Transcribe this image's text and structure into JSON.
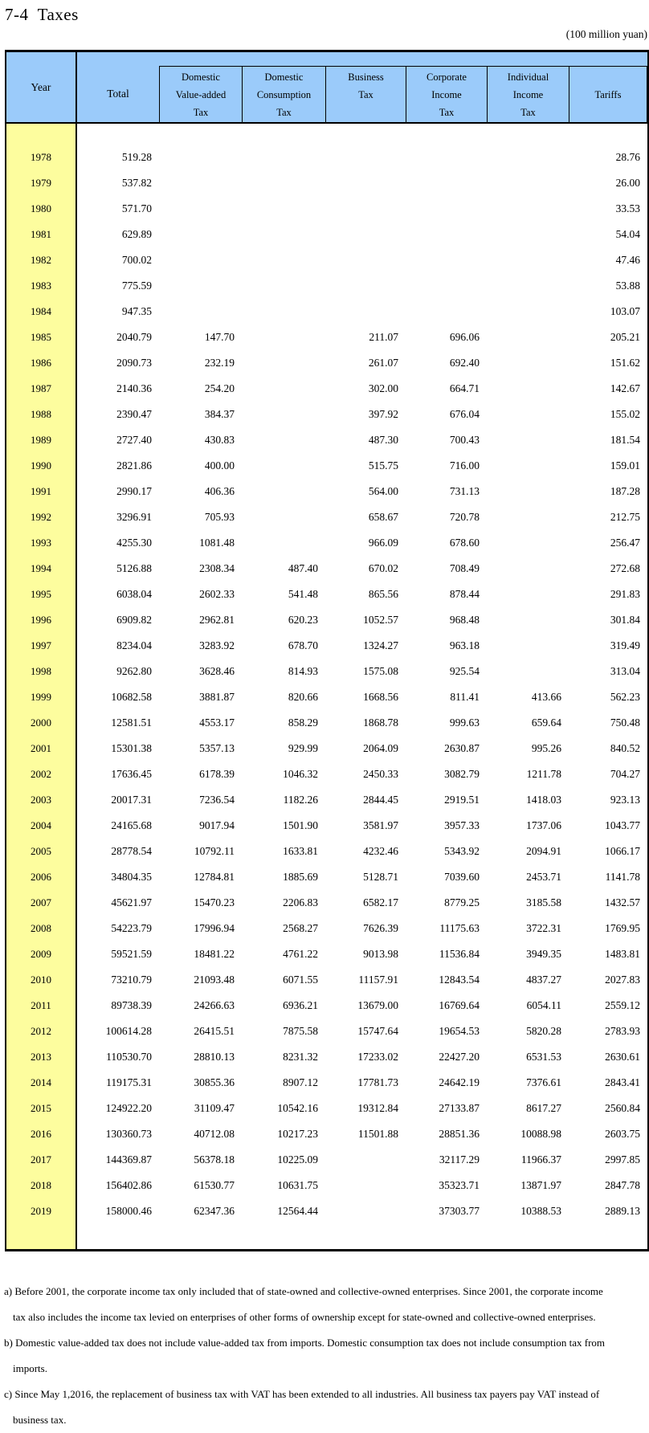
{
  "title": "7-4  Taxes",
  "unit_note": "(100 million yuan)",
  "table": {
    "header": {
      "year": "Year",
      "total": "Total",
      "subcolumns": [
        {
          "lines": [
            "Domestic",
            "Value-added",
            "Tax"
          ],
          "center": false
        },
        {
          "lines": [
            "Domestic",
            "Consumption",
            "Tax"
          ],
          "center": false
        },
        {
          "lines": [
            "Business",
            "Tax"
          ],
          "center": false
        },
        {
          "lines": [
            "Corporate",
            "Income",
            "Tax"
          ],
          "center": false
        },
        {
          "lines": [
            "Individual",
            "Income",
            "Tax"
          ],
          "center": false
        },
        {
          "lines": [
            "Tariffs"
          ],
          "center": true
        }
      ]
    }
  },
  "chart_data": {
    "type": "table",
    "title": "7-4 Taxes",
    "unit": "100 million yuan",
    "columns": [
      "Year",
      "Total",
      "Domestic Value-added Tax",
      "Domestic Consumption Tax",
      "Business Tax",
      "Corporate Income Tax",
      "Individual Income Tax",
      "Tariffs"
    ],
    "rows": [
      [
        "1978",
        "519.28",
        "",
        "",
        "",
        "",
        "",
        "28.76"
      ],
      [
        "1979",
        "537.82",
        "",
        "",
        "",
        "",
        "",
        "26.00"
      ],
      [
        "1980",
        "571.70",
        "",
        "",
        "",
        "",
        "",
        "33.53"
      ],
      [
        "1981",
        "629.89",
        "",
        "",
        "",
        "",
        "",
        "54.04"
      ],
      [
        "1982",
        "700.02",
        "",
        "",
        "",
        "",
        "",
        "47.46"
      ],
      [
        "1983",
        "775.59",
        "",
        "",
        "",
        "",
        "",
        "53.88"
      ],
      [
        "1984",
        "947.35",
        "",
        "",
        "",
        "",
        "",
        "103.07"
      ],
      [
        "1985",
        "2040.79",
        "147.70",
        "",
        "211.07",
        "696.06",
        "",
        "205.21"
      ],
      [
        "1986",
        "2090.73",
        "232.19",
        "",
        "261.07",
        "692.40",
        "",
        "151.62"
      ],
      [
        "1987",
        "2140.36",
        "254.20",
        "",
        "302.00",
        "664.71",
        "",
        "142.67"
      ],
      [
        "1988",
        "2390.47",
        "384.37",
        "",
        "397.92",
        "676.04",
        "",
        "155.02"
      ],
      [
        "1989",
        "2727.40",
        "430.83",
        "",
        "487.30",
        "700.43",
        "",
        "181.54"
      ],
      [
        "1990",
        "2821.86",
        "400.00",
        "",
        "515.75",
        "716.00",
        "",
        "159.01"
      ],
      [
        "1991",
        "2990.17",
        "406.36",
        "",
        "564.00",
        "731.13",
        "",
        "187.28"
      ],
      [
        "1992",
        "3296.91",
        "705.93",
        "",
        "658.67",
        "720.78",
        "",
        "212.75"
      ],
      [
        "1993",
        "4255.30",
        "1081.48",
        "",
        "966.09",
        "678.60",
        "",
        "256.47"
      ],
      [
        "1994",
        "5126.88",
        "2308.34",
        "487.40",
        "670.02",
        "708.49",
        "",
        "272.68"
      ],
      [
        "1995",
        "6038.04",
        "2602.33",
        "541.48",
        "865.56",
        "878.44",
        "",
        "291.83"
      ],
      [
        "1996",
        "6909.82",
        "2962.81",
        "620.23",
        "1052.57",
        "968.48",
        "",
        "301.84"
      ],
      [
        "1997",
        "8234.04",
        "3283.92",
        "678.70",
        "1324.27",
        "963.18",
        "",
        "319.49"
      ],
      [
        "1998",
        "9262.80",
        "3628.46",
        "814.93",
        "1575.08",
        "925.54",
        "",
        "313.04"
      ],
      [
        "1999",
        "10682.58",
        "3881.87",
        "820.66",
        "1668.56",
        "811.41",
        "413.66",
        "562.23"
      ],
      [
        "2000",
        "12581.51",
        "4553.17",
        "858.29",
        "1868.78",
        "999.63",
        "659.64",
        "750.48"
      ],
      [
        "2001",
        "15301.38",
        "5357.13",
        "929.99",
        "2064.09",
        "2630.87",
        "995.26",
        "840.52"
      ],
      [
        "2002",
        "17636.45",
        "6178.39",
        "1046.32",
        "2450.33",
        "3082.79",
        "1211.78",
        "704.27"
      ],
      [
        "2003",
        "20017.31",
        "7236.54",
        "1182.26",
        "2844.45",
        "2919.51",
        "1418.03",
        "923.13"
      ],
      [
        "2004",
        "24165.68",
        "9017.94",
        "1501.90",
        "3581.97",
        "3957.33",
        "1737.06",
        "1043.77"
      ],
      [
        "2005",
        "28778.54",
        "10792.11",
        "1633.81",
        "4232.46",
        "5343.92",
        "2094.91",
        "1066.17"
      ],
      [
        "2006",
        "34804.35",
        "12784.81",
        "1885.69",
        "5128.71",
        "7039.60",
        "2453.71",
        "1141.78"
      ],
      [
        "2007",
        "45621.97",
        "15470.23",
        "2206.83",
        "6582.17",
        "8779.25",
        "3185.58",
        "1432.57"
      ],
      [
        "2008",
        "54223.79",
        "17996.94",
        "2568.27",
        "7626.39",
        "11175.63",
        "3722.31",
        "1769.95"
      ],
      [
        "2009",
        "59521.59",
        "18481.22",
        "4761.22",
        "9013.98",
        "11536.84",
        "3949.35",
        "1483.81"
      ],
      [
        "2010",
        "73210.79",
        "21093.48",
        "6071.55",
        "11157.91",
        "12843.54",
        "4837.27",
        "2027.83"
      ],
      [
        "2011",
        "89738.39",
        "24266.63",
        "6936.21",
        "13679.00",
        "16769.64",
        "6054.11",
        "2559.12"
      ],
      [
        "2012",
        "100614.28",
        "26415.51",
        "7875.58",
        "15747.64",
        "19654.53",
        "5820.28",
        "2783.93"
      ],
      [
        "2013",
        "110530.70",
        "28810.13",
        "8231.32",
        "17233.02",
        "22427.20",
        "6531.53",
        "2630.61"
      ],
      [
        "2014",
        "119175.31",
        "30855.36",
        "8907.12",
        "17781.73",
        "24642.19",
        "7376.61",
        "2843.41"
      ],
      [
        "2015",
        "124922.20",
        "31109.47",
        "10542.16",
        "19312.84",
        "27133.87",
        "8617.27",
        "2560.84"
      ],
      [
        "2016",
        "130360.73",
        "40712.08",
        "10217.23",
        "11501.88",
        "28851.36",
        "10088.98",
        "2603.75"
      ],
      [
        "2017",
        "144369.87",
        "56378.18",
        "10225.09",
        "",
        "32117.29",
        "11966.37",
        "2997.85"
      ],
      [
        "2018",
        "156402.86",
        "61530.77",
        "10631.75",
        "",
        "35323.71",
        "13871.97",
        "2847.78"
      ],
      [
        "2019",
        "158000.46",
        "62347.36",
        "12564.44",
        "",
        "37303.77",
        "10388.53",
        "2889.13"
      ]
    ]
  },
  "footnotes": [
    {
      "text": "a) Before 2001, the corporate income tax only included that of state-owned and collective-owned enterprises. Since 2001, the corporate income",
      "indent": false
    },
    {
      "text": "tax also includes the income tax levied on enterprises of other forms of ownership except for state-owned and collective-owned enterprises.",
      "indent": true
    },
    {
      "text": "b) Domestic value-added tax does not include value-added tax from imports. Domestic consumption tax does not include consumption tax from",
      "indent": false
    },
    {
      "text": "imports.",
      "indent": true
    },
    {
      "text": "c) Since May 1,2016, the replacement of business tax with VAT has been extended to all industries.  All business tax payers pay VAT instead of",
      "indent": false
    },
    {
      "text": "business tax.",
      "indent": true
    }
  ],
  "colors": {
    "header_bg": "#9bcbfa",
    "year_column_bg": "#fdfd9e",
    "border": "#000000"
  }
}
